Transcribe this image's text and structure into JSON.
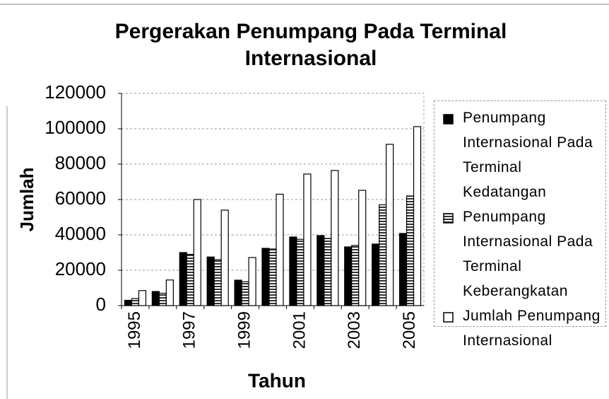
{
  "chart_data": {
    "type": "bar",
    "title": "Pergerakan Penumpang Pada Terminal Internasional",
    "x_label": "Tahun",
    "y_label": "Jumlah",
    "categories": [
      "1995",
      null,
      "1997",
      null,
      "1999",
      null,
      "2001",
      null,
      "2003",
      null,
      "2005"
    ],
    "series": [
      {
        "name": "Penumpang Internasional Pada Terminal Kedatangan",
        "color": "#000000",
        "values": [
          3000,
          8000,
          30000,
          27500,
          14400,
          32400,
          38800,
          39600,
          33200,
          34800,
          40800
        ]
      },
      {
        "name": "Penumpang Internasional Pada Terminal Keberangkatan",
        "color": "#333333",
        "values": [
          4000,
          7000,
          29000,
          26000,
          13500,
          32000,
          37500,
          38000,
          34000,
          57000,
          62000
        ]
      },
      {
        "name": "Jumlah Penumpang Internasional",
        "color": "#ffffff",
        "values": [
          8500,
          14500,
          60000,
          54000,
          27200,
          63000,
          74400,
          76400,
          65200,
          91200,
          101200
        ]
      }
    ],
    "ylim": [
      0,
      120000
    ],
    "yticks": [
      0,
      20000,
      40000,
      60000,
      80000,
      100000,
      120000
    ],
    "grid": true,
    "legend": "right"
  }
}
